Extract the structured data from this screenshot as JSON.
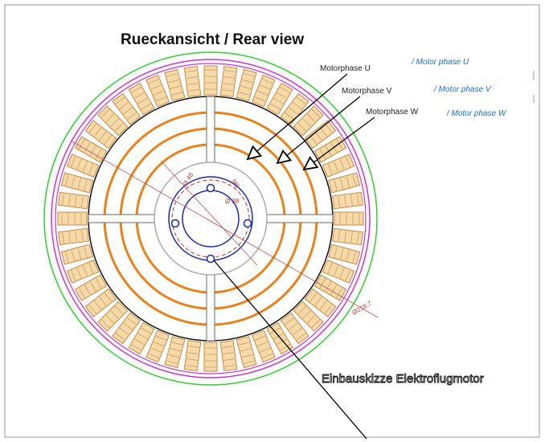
{
  "title": "Rueckansicht / Rear view",
  "phases": [
    {
      "label": "Motorphase U",
      "translation": "/ Motor phase U"
    },
    {
      "label": "Motorphase V",
      "translation": "/ Motor phase V"
    },
    {
      "label": "Motorphase W",
      "translation": "/ Motor phase W"
    }
  ],
  "caption": "Einbauskizze Elektroflugmotor",
  "dimensions": {
    "outer": "Ø218,7",
    "hole_circle": "Ø 48",
    "thread": "M5",
    "inner": "Ø 38"
  }
}
